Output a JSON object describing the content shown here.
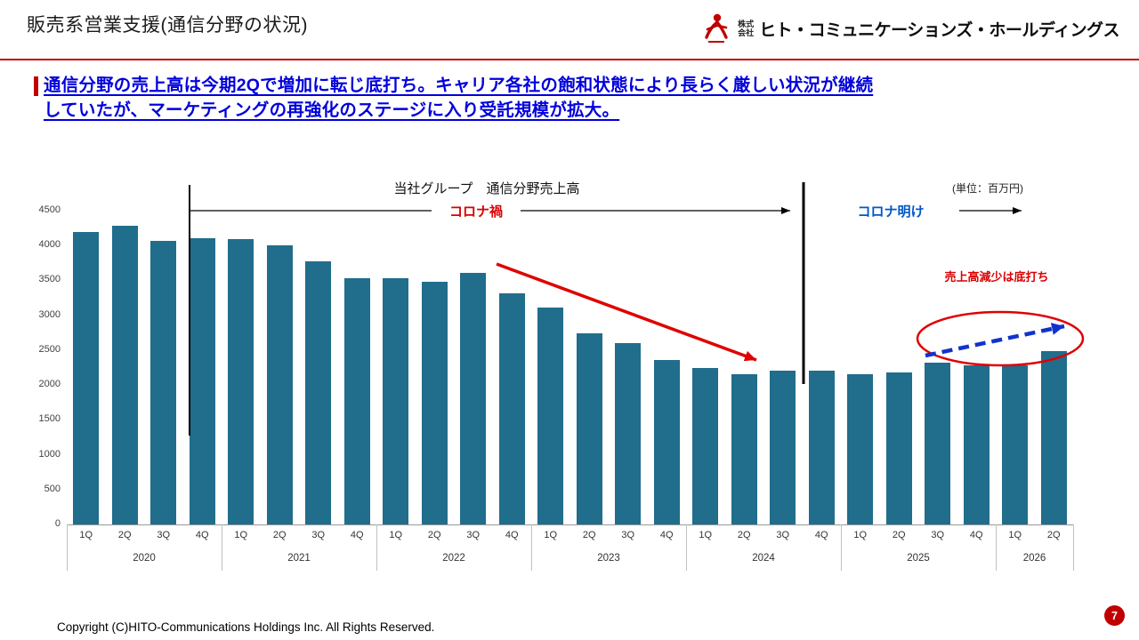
{
  "slide": {
    "title": "販売系営業支援(通信分野の状況)",
    "footer": "Copyright (C)HITO-Communications Holdings Inc. All Rights Reserved.",
    "page_number": "7"
  },
  "logo": {
    "prefix": "株式\n会社",
    "company": "ヒト・コミュニケーションズ・ホールディングス"
  },
  "headline": {
    "line1": "通信分野の売上高は今期2Qで増加に転じ底打ち。キャリア各社の飽和状態により長らく厳しい状況が継続",
    "line2": "していたが、マーケティングの再強化のステージに入り受託規模が拡大。"
  },
  "annotations": {
    "chart_title": "当社グループ　通信分野売上高",
    "unit": "(単位：百万円)",
    "covid": "コロナ禍",
    "post_covid": "コロナ明け",
    "bottomed": "売上高減少は底打ち"
  },
  "colors": {
    "accent_red": "#c00000",
    "annotation_red": "#d80000",
    "headline_blue": "#0000dc",
    "post_covid_blue": "#0057c8",
    "bar_teal": "#206d8c"
  },
  "chart_data": {
    "type": "bar",
    "title": "当社グループ 通信分野売上高",
    "unit": "百万円",
    "ylim": [
      0,
      4500
    ],
    "yticks": [
      0,
      500,
      1000,
      1500,
      2000,
      2500,
      3000,
      3500,
      4000,
      4500
    ],
    "bar_color": "#206d8c",
    "legend": "none",
    "grid": false,
    "groups": [
      {
        "year": "2020",
        "quarters": [
          "1Q",
          "2Q",
          "3Q",
          "4Q"
        ],
        "values": [
          4190,
          4280,
          4070,
          4100
        ]
      },
      {
        "year": "2021",
        "quarters": [
          "1Q",
          "2Q",
          "3Q",
          "4Q"
        ],
        "values": [
          4090,
          4000,
          3770,
          3530
        ]
      },
      {
        "year": "2022",
        "quarters": [
          "1Q",
          "2Q",
          "3Q",
          "4Q"
        ],
        "values": [
          3530,
          3480,
          3610,
          3310
        ]
      },
      {
        "year": "2023",
        "quarters": [
          "1Q",
          "2Q",
          "3Q",
          "4Q"
        ],
        "values": [
          3110,
          2740,
          2600,
          2360
        ]
      },
      {
        "year": "2024",
        "quarters": [
          "1Q",
          "2Q",
          "3Q",
          "4Q"
        ],
        "values": [
          2250,
          2150,
          2200,
          2200
        ]
      },
      {
        "year": "2025",
        "quarters": [
          "1Q",
          "2Q",
          "3Q",
          "4Q"
        ],
        "values": [
          2160,
          2180,
          2320,
          2280
        ]
      },
      {
        "year": "2026",
        "quarters": [
          "1Q",
          "2Q"
        ],
        "values": [
          2280,
          2490
        ]
      }
    ]
  }
}
